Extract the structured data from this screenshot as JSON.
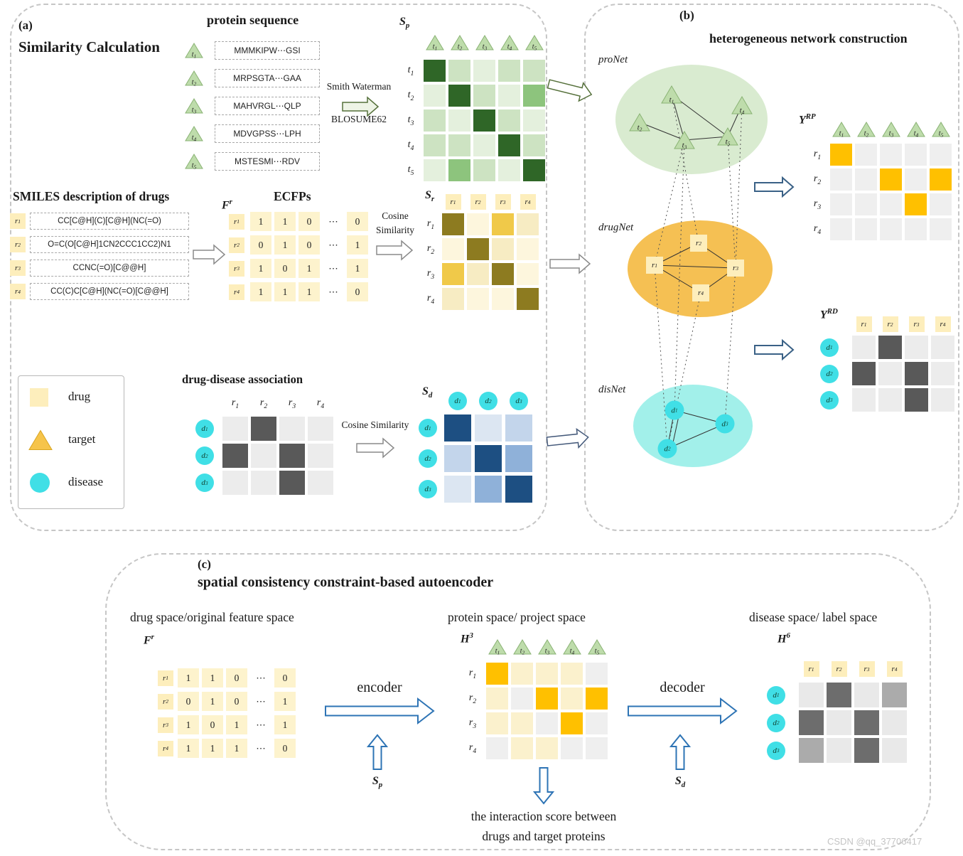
{
  "watermark": "CSDN @qq_37706417",
  "colors": {
    "green_scale": [
      "#e4f0dd",
      "#cde3c2",
      "#8dc47d",
      "#2f6627"
    ],
    "yellow_scale": [
      "#fdf6dd",
      "#f7ecc3",
      "#f0c949",
      "#8d7b20"
    ],
    "blue_scale": [
      "#dce6f2",
      "#c3d5eb",
      "#8fb1d9",
      "#1d4f82"
    ],
    "gray_scale": [
      "#ececec",
      "#595959"
    ],
    "gold_scale": [
      "#efefef",
      "#ffc000"
    ],
    "h3_scale": [
      "#efefef",
      "#fbf1cd",
      "#ffc000"
    ],
    "h6_scale": [
      "#e9e9e9",
      "#ababab",
      "#6d6d6d"
    ],
    "triangle_fill": "#bedcab",
    "triangle_stroke": "#8ab374",
    "target_fill": "#f6c44a",
    "target_stroke": "#d9a520",
    "square_fill": "#fdeebc",
    "circle_fill": "#40dfe6",
    "pro_ellipse": "#d9ebd0",
    "drug_ellipse": "#f5c053",
    "dis_ellipse": "#a2f0ea"
  },
  "panel_a": {
    "label": "(a)",
    "title": "Similarity Calculation",
    "protein_title": "protein sequence",
    "protein_items": [
      {
        "id": "t1",
        "seq": "MMMKIPW⋯GSI"
      },
      {
        "id": "t2",
        "seq": "MRPSGTA⋯GAA"
      },
      {
        "id": "t3",
        "seq": "MAHVRGL⋯QLP"
      },
      {
        "id": "t4",
        "seq": "MDVGPSS⋯LPH"
      },
      {
        "id": "t5",
        "seq": "MSTESMI⋯RDV"
      }
    ],
    "method1": "Smith Waterman",
    "method2": "BLOSUME62",
    "smiles_title": "SMILES description of drugs",
    "smiles_items": [
      {
        "id": "r1",
        "text": "CC[C@H](C)[C@H](NC(=O)"
      },
      {
        "id": "r2",
        "text": "O=C(O[C@H]1CN2CCC1CC2)N1"
      },
      {
        "id": "r3",
        "text": "CCNC(=O)[C@@H]"
      },
      {
        "id": "r4",
        "text": "CC(C)C[C@H](NC(=O)[C@@H]"
      }
    ],
    "ecfps_title": "ECFPs",
    "cosine_word1": "Cosine",
    "cosine_word2": "Similarity",
    "cosine_line": "Cosine Similarity",
    "dd_title": "drug-disease association",
    "legend": [
      {
        "type": "square",
        "label": "drug"
      },
      {
        "type": "triangle",
        "label": "target"
      },
      {
        "type": "circle",
        "label": "disease"
      }
    ]
  },
  "panel_b": {
    "label": "(b)",
    "title": "heterogeneous network construction"
  },
  "panel_c": {
    "label": "(c)",
    "title": "spatial consistency constraint-based autoencoder",
    "drug_space": "drug space/original feature space",
    "protein_space": "protein space/ project space",
    "disease_space": "disease space/ label space",
    "encoder": "encoder",
    "decoder": "decoder",
    "sp_label": {
      "base": "S",
      "sub": "p"
    },
    "sd_label": {
      "base": "S",
      "sub": "d"
    },
    "interaction_line1": "the interaction score between",
    "interaction_line2": "drugs and target proteins"
  },
  "matrices": {
    "sp": {
      "label": {
        "base": "S",
        "sub": "p"
      },
      "cols": [
        "t1",
        "t2",
        "t3",
        "t4",
        "t5"
      ],
      "rows": [
        "t1",
        "t2",
        "t3",
        "t4",
        "t5"
      ],
      "scale": "green_scale",
      "cells": [
        [
          3,
          1,
          0,
          1,
          1
        ],
        [
          0,
          3,
          1,
          0,
          2
        ],
        [
          1,
          0,
          3,
          1,
          0
        ],
        [
          1,
          1,
          0,
          3,
          1
        ],
        [
          0,
          2,
          1,
          0,
          3
        ]
      ]
    },
    "fr_a": {
      "label": {
        "base": "F",
        "sup": "r"
      },
      "rows": [
        "r1",
        "r2",
        "r3",
        "r4"
      ],
      "text": true,
      "cells": [
        [
          "1",
          "1",
          "0",
          "⋯",
          "0"
        ],
        [
          "0",
          "1",
          "0",
          "⋯",
          "1"
        ],
        [
          "1",
          "0",
          "1",
          "⋯",
          "1"
        ],
        [
          "1",
          "1",
          "1",
          "⋯",
          "0"
        ]
      ]
    },
    "sr": {
      "label": {
        "base": "S",
        "sub": "r"
      },
      "cols": [
        "r1",
        "r2",
        "r3",
        "r4"
      ],
      "rows": [
        "r1",
        "r2",
        "r3",
        "r4"
      ],
      "scale": "yellow_scale",
      "cells": [
        [
          3,
          0,
          2,
          1
        ],
        [
          0,
          3,
          1,
          0
        ],
        [
          2,
          1,
          3,
          0
        ],
        [
          1,
          0,
          0,
          3
        ]
      ]
    },
    "dd": {
      "cols": [
        "r1",
        "r2",
        "r3",
        "r4"
      ],
      "rows": [
        "d1",
        "d2",
        "d3"
      ],
      "scale": "gray_scale",
      "cells": [
        [
          0,
          1,
          0,
          0
        ],
        [
          1,
          0,
          1,
          0
        ],
        [
          0,
          0,
          1,
          0
        ]
      ]
    },
    "sd": {
      "label": {
        "base": "S",
        "sub": "d"
      },
      "cols": [
        "d1",
        "d2",
        "d3"
      ],
      "rows": [
        "d1",
        "d2",
        "d3"
      ],
      "scale": "blue_scale",
      "cells": [
        [
          3,
          0,
          1
        ],
        [
          1,
          3,
          2
        ],
        [
          0,
          2,
          3
        ]
      ]
    },
    "yrp": {
      "label": {
        "base": "Y",
        "sup": "RP"
      },
      "cols": [
        "t1",
        "t2",
        "t3",
        "t4",
        "t5"
      ],
      "rows": [
        "r1",
        "r2",
        "r3",
        "r4"
      ],
      "scale": "gold_scale",
      "cells": [
        [
          1,
          0,
          0,
          0,
          0
        ],
        [
          0,
          0,
          1,
          0,
          1
        ],
        [
          0,
          0,
          0,
          1,
          0
        ],
        [
          0,
          0,
          0,
          0,
          0
        ]
      ]
    },
    "yrd": {
      "label": {
        "base": "Y",
        "sup": "RD"
      },
      "cols": [
        "r1",
        "r2",
        "r3",
        "r4"
      ],
      "rows": [
        "d1",
        "d2",
        "d3"
      ],
      "scale": "gray_scale",
      "cells": [
        [
          0,
          1,
          0,
          0
        ],
        [
          1,
          0,
          1,
          0
        ],
        [
          0,
          0,
          1,
          0
        ]
      ]
    },
    "fr_c": {
      "label": {
        "base": "F",
        "sup": "r"
      },
      "rows": [
        "r1",
        "r2",
        "r3",
        "r4"
      ],
      "text": true,
      "cells": [
        [
          "1",
          "1",
          "0",
          "⋯",
          "0"
        ],
        [
          "0",
          "1",
          "0",
          "⋯",
          "1"
        ],
        [
          "1",
          "0",
          "1",
          "⋯",
          "1"
        ],
        [
          "1",
          "1",
          "1",
          "⋯",
          "0"
        ]
      ]
    },
    "h3": {
      "label": {
        "base": "H",
        "sup": "3"
      },
      "cols": [
        "t1",
        "t2",
        "t3",
        "t4",
        "t5"
      ],
      "rows": [
        "r1",
        "r2",
        "r3",
        "r4"
      ],
      "scale": "h3_scale",
      "cells": [
        [
          2,
          1,
          1,
          1,
          0
        ],
        [
          1,
          0,
          2,
          1,
          2
        ],
        [
          1,
          1,
          0,
          2,
          0
        ],
        [
          0,
          1,
          1,
          0,
          0
        ]
      ]
    },
    "h6": {
      "label": {
        "base": "H",
        "sup": "6"
      },
      "cols": [
        "r1",
        "r2",
        "r3",
        "r4"
      ],
      "rows": [
        "d1",
        "d2",
        "d3"
      ],
      "scale": "h6_scale",
      "cells": [
        [
          0,
          2,
          0,
          1
        ],
        [
          2,
          0,
          2,
          0
        ],
        [
          1,
          0,
          2,
          0
        ]
      ]
    }
  },
  "networks": {
    "pro": {
      "label": "proNet",
      "nodes": [
        "t1",
        "t2",
        "t3",
        "t4",
        "t5"
      ],
      "edges": [
        [
          "t1",
          "t3"
        ],
        [
          "t1",
          "t5"
        ],
        [
          "t2",
          "t3"
        ],
        [
          "t3",
          "t5"
        ],
        [
          "t4",
          "t5"
        ]
      ]
    },
    "drug": {
      "label": "drugNet",
      "nodes": [
        "r1",
        "r2",
        "r3",
        "r4"
      ],
      "edges": [
        [
          "r1",
          "r2"
        ],
        [
          "r1",
          "r3"
        ],
        [
          "r1",
          "r4"
        ],
        [
          "r2",
          "r3"
        ],
        [
          "r3",
          "r4"
        ]
      ]
    },
    "dis": {
      "label": "disNet",
      "nodes": [
        "d1",
        "d2",
        "d3"
      ],
      "edges": [
        [
          "d1",
          "d2"
        ],
        [
          "d1",
          "d3"
        ],
        [
          "d2",
          "d3"
        ]
      ]
    }
  },
  "cross_links": [
    [
      "t1",
      "r2"
    ],
    [
      "t3",
      "r1"
    ],
    [
      "t5",
      "r3"
    ],
    [
      "t4",
      "r3"
    ],
    [
      "t3",
      "d1"
    ],
    [
      "r1",
      "d2"
    ],
    [
      "r4",
      "d2"
    ],
    [
      "r3",
      "d3"
    ]
  ]
}
